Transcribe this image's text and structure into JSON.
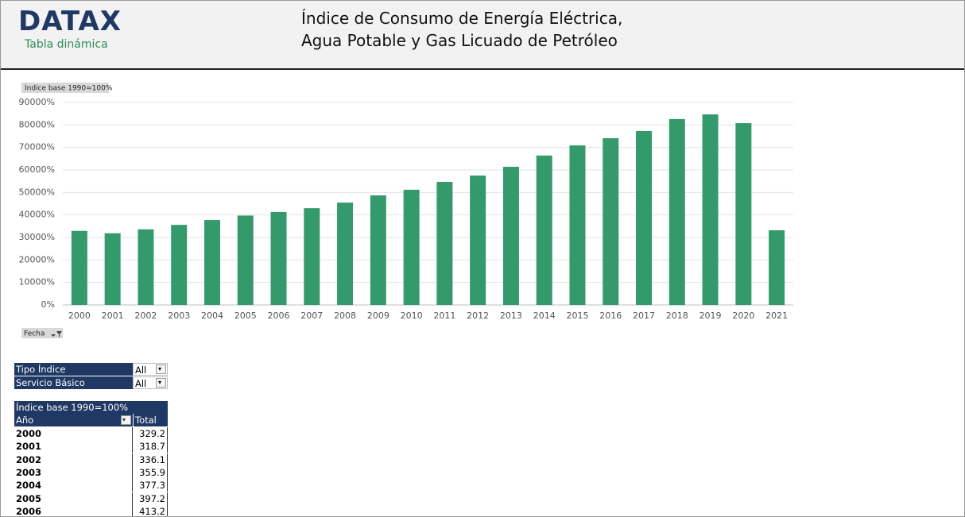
{
  "header": {
    "logo": "DATAX",
    "subtitle": "Tabla dinámica",
    "title_lines": [
      "Índice de Consumo de Energía Eléctrica,",
      "Agua Potable y Gas Licuado de Petróleo"
    ]
  },
  "chart_data": {
    "type": "bar",
    "value_field": "Índice base 1990=100%",
    "axis_field": "Fecha",
    "categories": [
      "2000",
      "2001",
      "2002",
      "2003",
      "2004",
      "2005",
      "2006",
      "2007",
      "2008",
      "2009",
      "2010",
      "2011",
      "2012",
      "2013",
      "2014",
      "2015",
      "2016",
      "2017",
      "2018",
      "2019",
      "2020",
      "2021"
    ],
    "values": [
      32920,
      31870,
      33610,
      35590,
      37730,
      39720,
      41320,
      43000,
      45500,
      48700,
      51200,
      54700,
      57500,
      61400,
      66400,
      70900,
      74100,
      77300,
      82600,
      84700,
      80800,
      33200
    ],
    "color": "#349a6b",
    "ylim": [
      0,
      90000
    ],
    "yticks": [
      {
        "value": 0,
        "label": "0%"
      },
      {
        "value": 10000,
        "label": "10000%"
      },
      {
        "value": 20000,
        "label": "20000%"
      },
      {
        "value": 30000,
        "label": "30000%"
      },
      {
        "value": 40000,
        "label": "40000%"
      },
      {
        "value": 50000,
        "label": "50000%"
      },
      {
        "value": 60000,
        "label": "60000%"
      },
      {
        "value": 70000,
        "label": "70000%"
      },
      {
        "value": 80000,
        "label": "80000%"
      },
      {
        "value": 90000,
        "label": "90000%"
      }
    ],
    "grid": true
  },
  "filters": [
    {
      "label": "Tipo Índice",
      "value": "All"
    },
    {
      "label": "Servicio Básico",
      "value": "All"
    }
  ],
  "pivot": {
    "value_header": "Índice base 1990=100%",
    "row_header": "Año",
    "total_header": "Total",
    "rows": [
      [
        "2000",
        329.2
      ],
      [
        "2001",
        318.7
      ],
      [
        "2002",
        336.1
      ],
      [
        "2003",
        355.9
      ],
      [
        "2004",
        377.3
      ],
      [
        "2005",
        397.2
      ],
      [
        "2006",
        413.2
      ]
    ]
  }
}
